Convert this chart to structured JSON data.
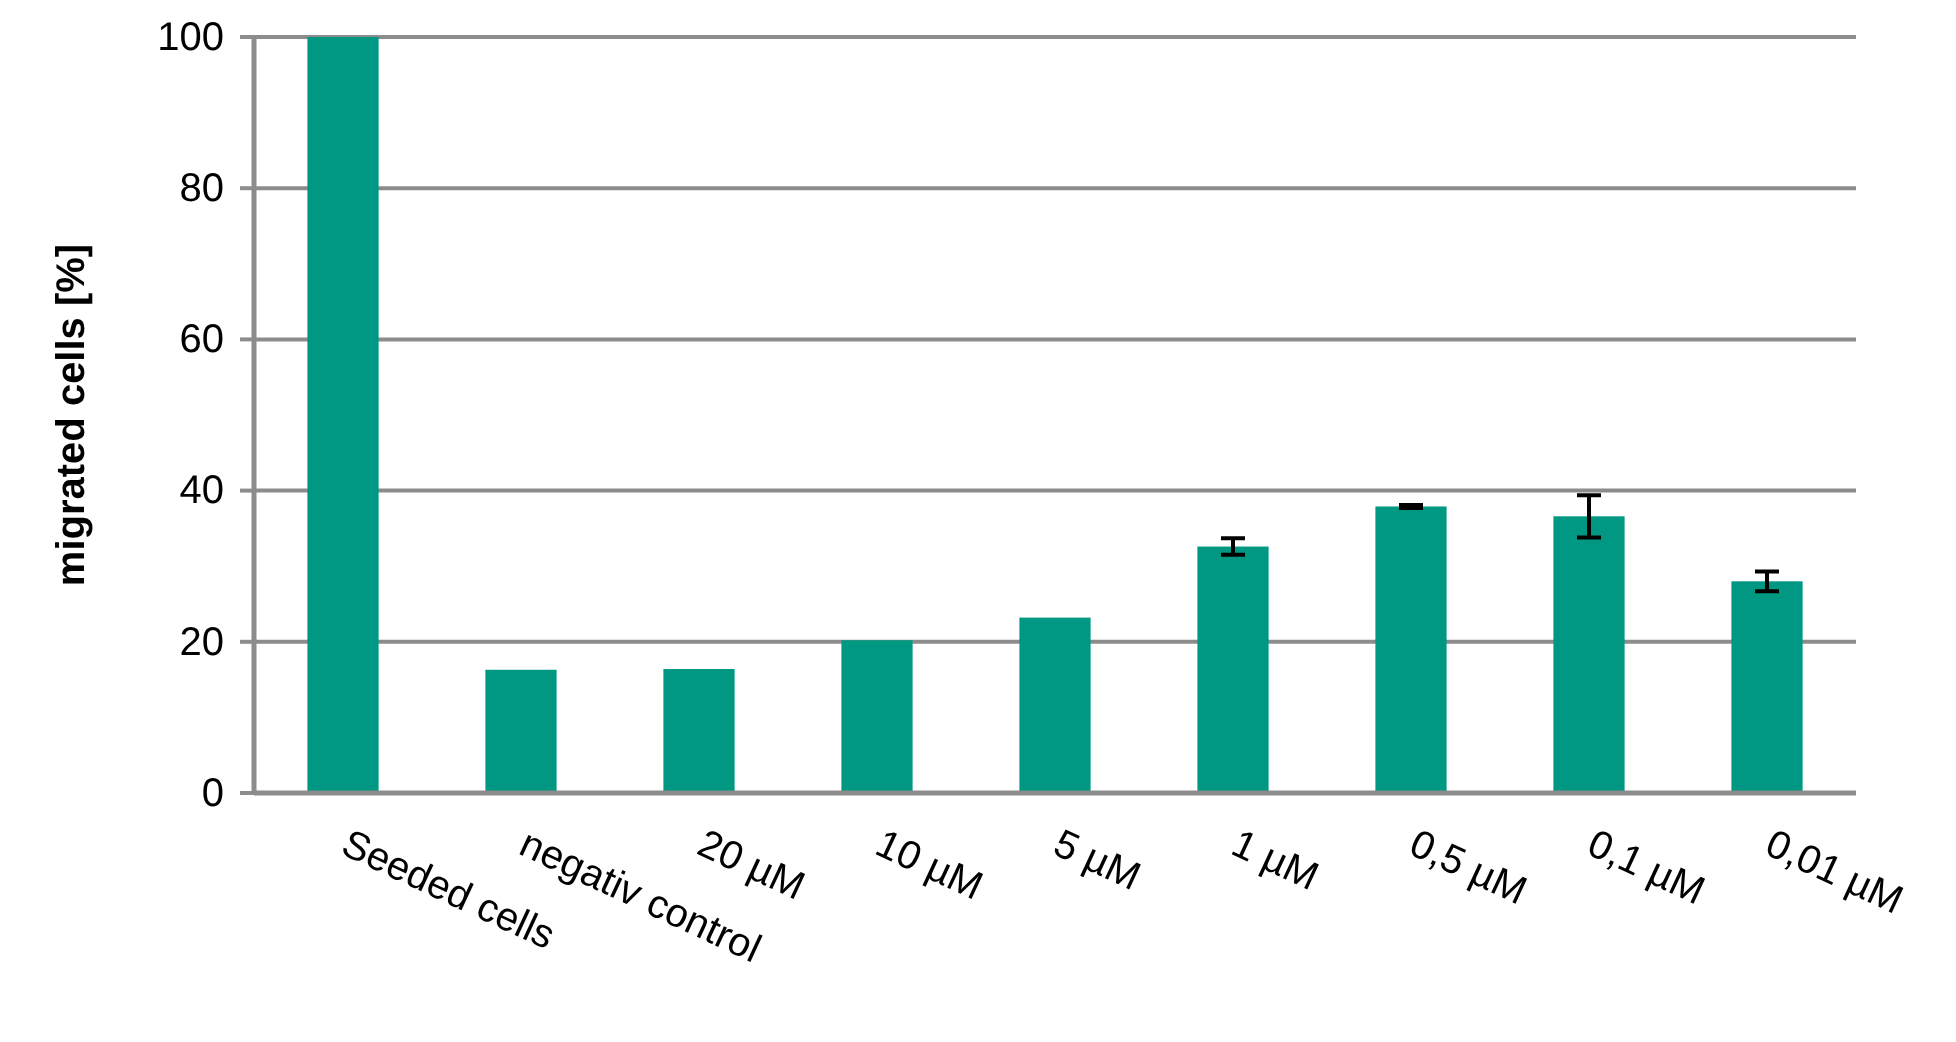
{
  "chart_data": {
    "type": "bar",
    "ylabel": "migrated cells [%]",
    "categories": [
      "Seeded cells",
      "negativ control",
      "20 µM",
      "10 µM",
      "5 µM",
      "1 µM",
      "0,5 µM",
      "0,1 µM",
      "0,01 µM"
    ],
    "values": [
      100,
      16.3,
      16.4,
      20.2,
      23.2,
      32.6,
      37.9,
      36.6,
      28.0
    ],
    "errors": [
      null,
      null,
      null,
      null,
      null,
      1.1,
      0.2,
      2.8,
      1.3
    ],
    "color": "#009882",
    "ylim": [
      0,
      100
    ],
    "yticks": [
      0,
      20,
      40,
      60,
      80,
      100
    ],
    "grid": "y"
  }
}
